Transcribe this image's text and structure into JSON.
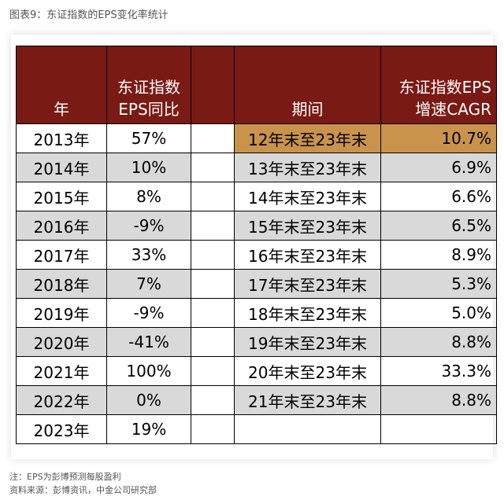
{
  "figure_title": "图表9：东证指数的EPS变化率统计",
  "table": {
    "headers": {
      "year": "年",
      "eps_yoy": "东证指数EPS同比",
      "blank": "",
      "period": "期间",
      "cagr": "东证指数EPS增速CAGR"
    },
    "rows": [
      {
        "year": "2013年",
        "yoy": "57%",
        "period": "12年末至23年末",
        "cagr": "10.7%"
      },
      {
        "year": "2014年",
        "yoy": "10%",
        "period": "13年末至23年末",
        "cagr": "6.9%"
      },
      {
        "year": "2015年",
        "yoy": "8%",
        "period": "14年末至23年末",
        "cagr": "6.6%"
      },
      {
        "year": "2016年",
        "yoy": "-9%",
        "period": "15年末至23年末",
        "cagr": "6.5%"
      },
      {
        "year": "2017年",
        "yoy": "33%",
        "period": "16年末至23年末",
        "cagr": "8.9%"
      },
      {
        "year": "2018年",
        "yoy": "7%",
        "period": "17年末至23年末",
        "cagr": "5.3%"
      },
      {
        "year": "2019年",
        "yoy": "-9%",
        "period": "18年末至23年末",
        "cagr": "5.0%"
      },
      {
        "year": "2020年",
        "yoy": "-41%",
        "period": "19年末至23年末",
        "cagr": "8.8%"
      },
      {
        "year": "2021年",
        "yoy": "100%",
        "period": "20年末至23年末",
        "cagr": "33.3%"
      },
      {
        "year": "2022年",
        "yoy": "0%",
        "period": "21年末至23年末",
        "cagr": "8.8%"
      },
      {
        "year": "2023年",
        "yoy": "19%",
        "period": "",
        "cagr": ""
      }
    ]
  },
  "notes": {
    "note": "注：EPS为彭博预测每股盈利",
    "source": "资料来源：彭博资讯，中金公司研究部"
  },
  "colors": {
    "header_bg": "#7a1a14",
    "highlight_bg": "#c9934c",
    "stripe_bg": "#d9d9d9"
  }
}
